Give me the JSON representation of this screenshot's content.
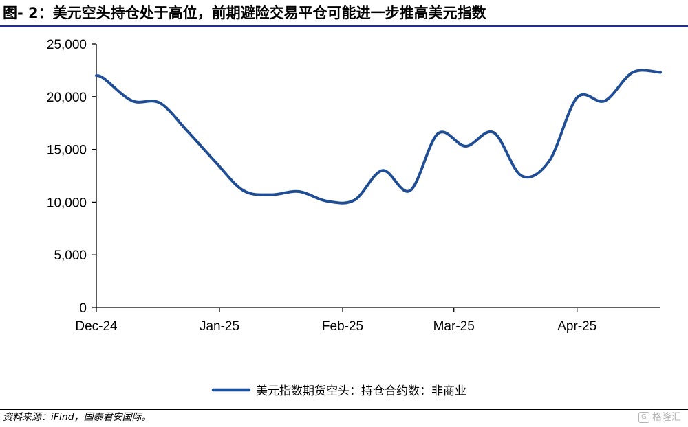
{
  "header": {
    "title": "图- 2：美元空头持仓处于高位，前期避险交易平仓可能进一步推高美元指数"
  },
  "footer": {
    "source": "资料来源：iFind，国泰君安国际。",
    "watermark": "格隆汇",
    "watermark_icon": "g-logo-icon"
  },
  "chart_data": {
    "type": "line",
    "title": "",
    "xlabel": "",
    "ylabel": "",
    "ylim": [
      0,
      25000
    ],
    "yticks": [
      0,
      5000,
      10000,
      15000,
      20000,
      25000
    ],
    "ytick_labels": [
      "0",
      "5,000",
      "10,000",
      "15,000",
      "20,000",
      "25,000"
    ],
    "xlim": [
      "2024-12-01",
      "2025-04-22"
    ],
    "xticks": [
      "2024-12-01",
      "2025-01-01",
      "2025-02-01",
      "2025-03-01",
      "2025-04-01"
    ],
    "xtick_labels": [
      "Dec-24",
      "Jan-25",
      "Feb-25",
      "Mar-25",
      "Apr-25"
    ],
    "grid": false,
    "legend_position": "bottom",
    "line_color": "#1f4e96",
    "series": [
      {
        "name": "美元指数期货空头：持仓合约数：非商业",
        "x": [
          "2024-12-01",
          "2024-12-03",
          "2024-12-10",
          "2024-12-17",
          "2024-12-24",
          "2024-12-31",
          "2025-01-07",
          "2025-01-14",
          "2025-01-21",
          "2025-01-28",
          "2025-02-04",
          "2025-02-11",
          "2025-02-18",
          "2025-02-25",
          "2025-03-04",
          "2025-03-11",
          "2025-03-18",
          "2025-03-25",
          "2025-04-01",
          "2025-04-08",
          "2025-04-15",
          "2025-04-22"
        ],
        "values": [
          22000,
          21700,
          19600,
          19400,
          16700,
          13800,
          11100,
          10700,
          11000,
          10100,
          10200,
          13000,
          11100,
          16500,
          15300,
          16600,
          12500,
          13900,
          19900,
          19600,
          22300,
          22300
        ]
      }
    ]
  }
}
